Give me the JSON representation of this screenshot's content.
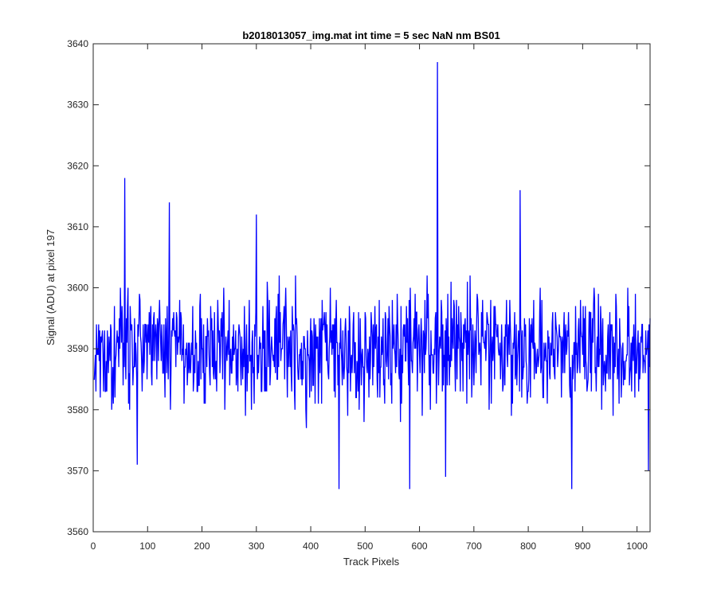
{
  "chart_data": {
    "type": "line",
    "title": "b2018013057_img.mat int time = 5 sec  NaN nm BS01",
    "xlabel": "Track Pixels",
    "ylabel": "Signal (ADU) at pixel 197",
    "xlim": [
      0,
      1024
    ],
    "ylim": [
      3560,
      3640
    ],
    "xticks": [
      0,
      100,
      200,
      300,
      400,
      500,
      600,
      700,
      800,
      900,
      1000
    ],
    "yticks": [
      3560,
      3570,
      3580,
      3590,
      3600,
      3610,
      3620,
      3630,
      3640
    ],
    "grid": false,
    "legend": "none",
    "series": [
      {
        "color": "#0000ff",
        "x_start": 1,
        "x_step": 1,
        "baseline": 3590,
        "noise_amplitude": 14,
        "num_points": 1024,
        "notable_points": [
          {
            "x": 58,
            "y": 3618
          },
          {
            "x": 81,
            "y": 3571
          },
          {
            "x": 140,
            "y": 3614
          },
          {
            "x": 300,
            "y": 3612
          },
          {
            "x": 452,
            "y": 3567
          },
          {
            "x": 582,
            "y": 3567
          },
          {
            "x": 633,
            "y": 3637
          },
          {
            "x": 648,
            "y": 3569
          },
          {
            "x": 785,
            "y": 3616
          },
          {
            "x": 880,
            "y": 3567
          },
          {
            "x": 1021,
            "y": 3570
          }
        ]
      }
    ]
  }
}
